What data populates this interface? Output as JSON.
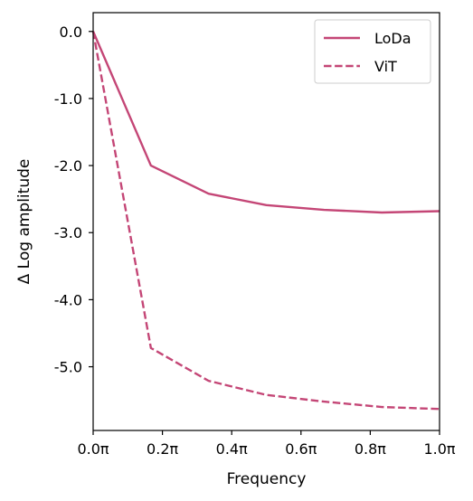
{
  "chart_data": {
    "type": "line",
    "title": "",
    "xlabel": "Frequency",
    "ylabel": "Δ Log amplitude",
    "xlim": [
      0.0,
      1.0
    ],
    "ylim": [
      -5.95,
      0.28
    ],
    "xticks": [
      0.0,
      0.2,
      0.4,
      0.6,
      0.8,
      1.0
    ],
    "xtick_labels": [
      "0.0π",
      "0.2π",
      "0.4π",
      "0.6π",
      "0.8π",
      "1.0π"
    ],
    "yticks": [
      0.0,
      -1.0,
      -2.0,
      -3.0,
      -4.0,
      -5.0
    ],
    "ytick_labels": [
      "0.0",
      "-1.0",
      "-2.0",
      "-3.0",
      "-4.0",
      "-5.0"
    ],
    "grid": false,
    "legend_position": "top-right",
    "x": [
      0.0,
      0.1667,
      0.3333,
      0.5,
      0.6667,
      0.8333,
      1.0
    ],
    "series": [
      {
        "name": "LoDa",
        "style": "solid",
        "color": "#c44676",
        "values": [
          0.0,
          -2.0,
          -2.42,
          -2.59,
          -2.66,
          -2.7,
          -2.68
        ]
      },
      {
        "name": "ViT",
        "style": "dashed",
        "color": "#c44676",
        "values": [
          0.0,
          -4.72,
          -5.21,
          -5.42,
          -5.52,
          -5.6,
          -5.63
        ]
      }
    ]
  }
}
